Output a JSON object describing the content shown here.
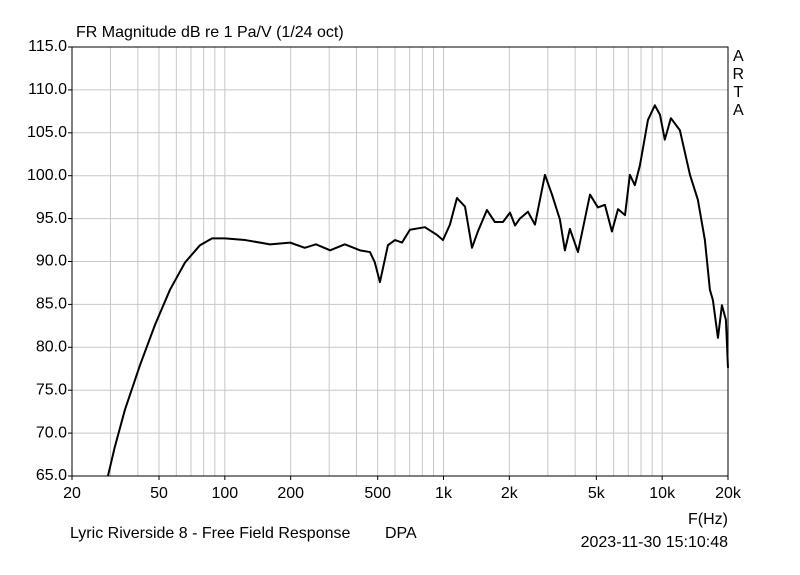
{
  "chart_data": {
    "type": "line",
    "title": "FR Magnitude dB re 1 Pa/V (1/24 oct)",
    "watermark": "ARTA",
    "xlabel": "F(Hz)",
    "annotations": [
      "Lyric Riverside 8 - Free Field Response",
      "DPA",
      "2023-11-30  15:10:48"
    ],
    "log_x": true,
    "grid": true,
    "color": "#000000",
    "xlim": [
      20,
      20000
    ],
    "ylim": [
      65,
      115
    ],
    "xticks": [
      20,
      50,
      100,
      200,
      500,
      {
        "value": 1000,
        "label": "1k"
      },
      {
        "value": 2000,
        "label": "2k"
      },
      {
        "value": 5000,
        "label": "5k"
      },
      {
        "value": 10000,
        "label": "10k"
      },
      {
        "value": 20000,
        "label": "20k"
      }
    ],
    "xminorticks": [
      30,
      40,
      60,
      70,
      80,
      90,
      300,
      400,
      600,
      700,
      800,
      900,
      3000,
      4000,
      6000,
      7000,
      8000,
      9000
    ],
    "yticks": [
      {
        "value": 65,
        "label": "65.0"
      },
      {
        "value": 70,
        "label": "70.0"
      },
      {
        "value": 75,
        "label": "75.0"
      },
      {
        "value": 80,
        "label": "80.0"
      },
      {
        "value": 85,
        "label": "85.0"
      },
      {
        "value": 90,
        "label": "90.0"
      },
      {
        "value": 95,
        "label": "95.0"
      },
      {
        "value": 100,
        "label": "100.0"
      },
      {
        "value": 105,
        "label": "105.0"
      },
      {
        "value": 110,
        "label": "110.0"
      },
      {
        "value": 115,
        "label": "115.0"
      }
    ],
    "x": [
      29.2,
      31.4,
      34.9,
      40.9,
      47.9,
      56.1,
      65.8,
      77,
      87.4,
      100,
      124,
      161,
      199,
      232,
      261,
      303,
      354,
      415,
      461,
      485,
      512,
      557,
      600,
      646,
      702,
      822,
      933,
      994,
      1070,
      1152,
      1254,
      1350,
      1436,
      1580,
      1718,
      1870,
      2014,
      2124,
      2235,
      2433,
      2620,
      2910,
      3134,
      3406,
      3590,
      3785,
      4120,
      4676,
      5082,
      5472,
      5890,
      6282,
      6762,
      7116,
      7500,
      7910,
      8610,
      9260,
      9772,
      10280,
      10960,
      12050,
      13400,
      14560,
      15680,
      16530,
      17060,
      17990,
      18760,
      19560,
      20000
    ],
    "values": [
      65.0,
      68.4,
      72.7,
      77.9,
      82.6,
      86.7,
      89.9,
      91.9,
      92.7,
      92.7,
      92.5,
      92.0,
      92.2,
      91.6,
      92.0,
      91.3,
      92.0,
      91.3,
      91.1,
      89.9,
      87.6,
      91.9,
      92.5,
      92.2,
      93.7,
      94.0,
      93.1,
      92.5,
      94.3,
      97.4,
      96.4,
      91.6,
      93.5,
      96.0,
      94.6,
      94.6,
      95.7,
      94.2,
      95.0,
      95.8,
      94.3,
      100.1,
      97.8,
      94.9,
      91.3,
      93.8,
      91.1,
      97.8,
      96.3,
      96.6,
      93.5,
      96.1,
      95.4,
      100.1,
      98.9,
      101.2,
      106.5,
      108.2,
      107.1,
      104.2,
      106.7,
      105.3,
      100.1,
      97.2,
      92.5,
      86.7,
      85.5,
      81.1,
      84.9,
      83.2,
      77.6
    ]
  }
}
